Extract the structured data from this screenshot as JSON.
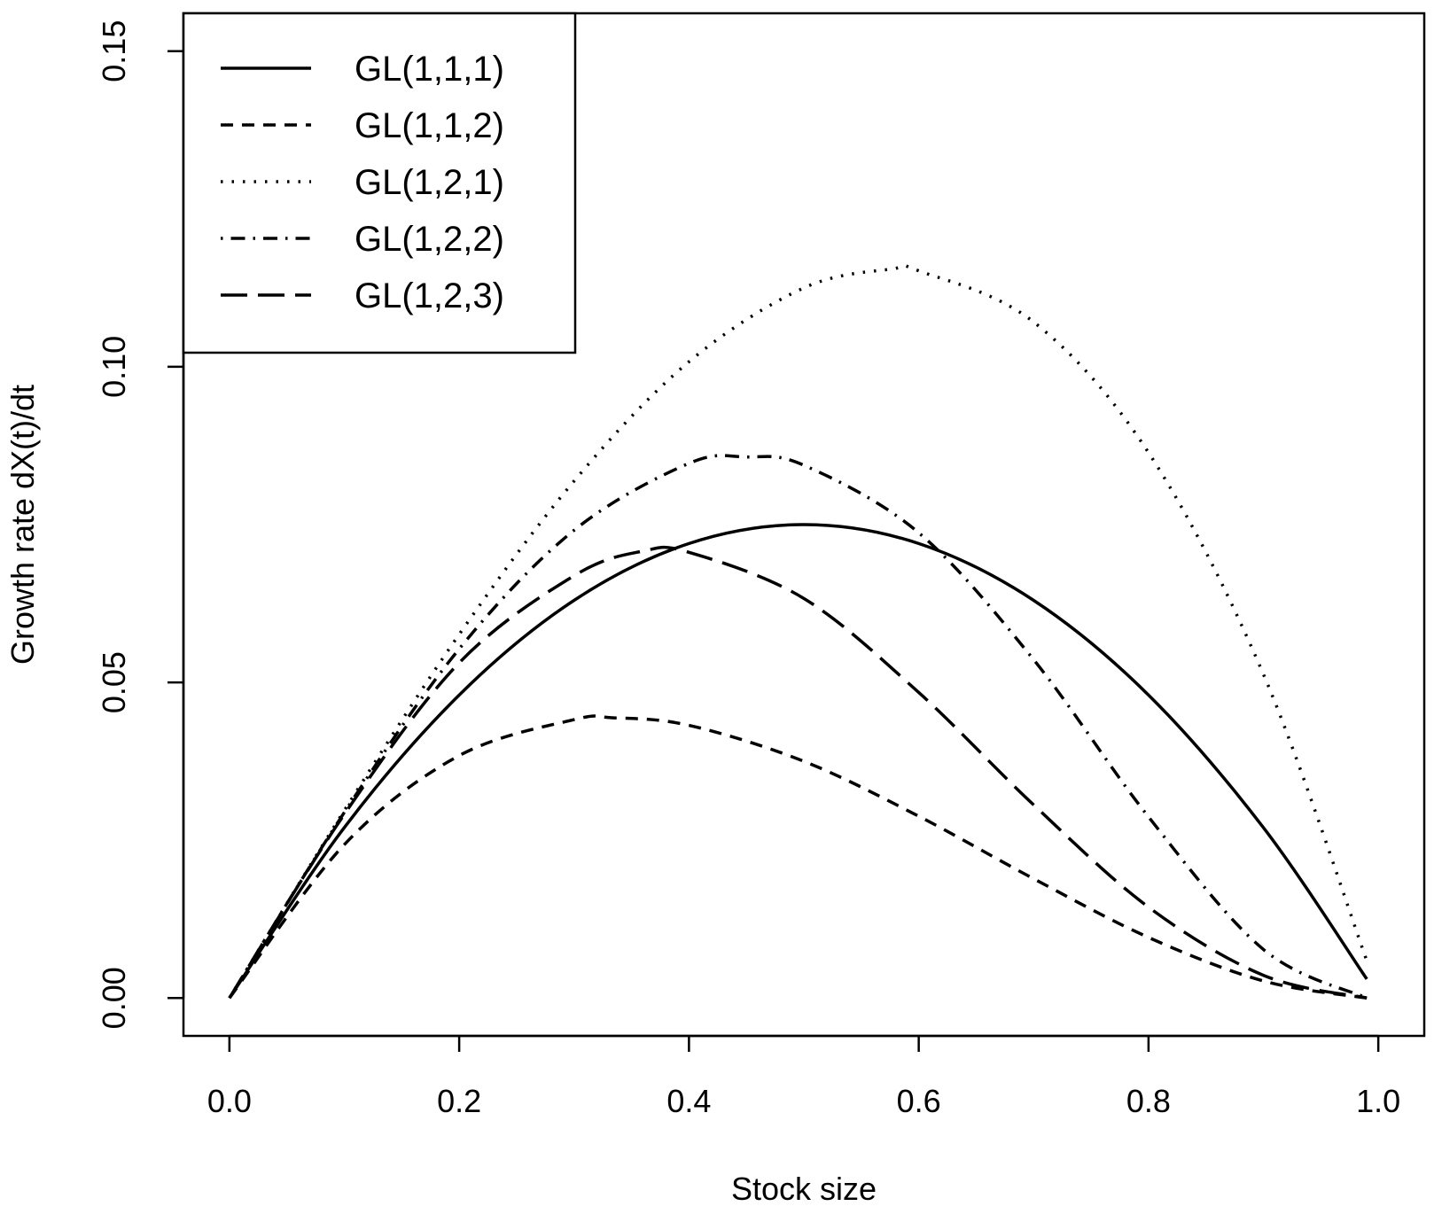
{
  "chart_data": {
    "type": "line",
    "title": "",
    "xlabel": "Stock size",
    "ylabel": "Growth rate dX(t)/dt",
    "xlim": [
      -0.04,
      1.04
    ],
    "ylim": [
      -0.006,
      0.156
    ],
    "xticks": [
      0.0,
      0.2,
      0.4,
      0.6,
      0.8,
      1.0
    ],
    "xtick_labels": [
      "0.0",
      "0.2",
      "0.4",
      "0.6",
      "0.8",
      "1.0"
    ],
    "yticks": [
      0.0,
      0.05,
      0.1,
      0.15
    ],
    "ytick_labels": [
      "0.00",
      "0.05",
      "0.10",
      "0.15"
    ],
    "grid": false,
    "legend_position": "top-left",
    "series": [
      {
        "name": "GL(1,1,1)",
        "style": "solid",
        "x": [
          0.0,
          0.1,
          0.2,
          0.3,
          0.4,
          0.5,
          0.6,
          0.7,
          0.8,
          0.9,
          0.99
        ],
        "y": [
          0.0,
          0.027,
          0.048,
          0.063,
          0.072,
          0.075,
          0.072,
          0.063,
          0.048,
          0.027,
          0.003
        ]
      },
      {
        "name": "GL(1,1,2)",
        "style": "dashed",
        "x": [
          0.0,
          0.1,
          0.2,
          0.3,
          0.333,
          0.4,
          0.5,
          0.6,
          0.7,
          0.8,
          0.9,
          0.99
        ],
        "y": [
          0.0,
          0.0243,
          0.0384,
          0.0441,
          0.0444,
          0.0432,
          0.0375,
          0.0288,
          0.0189,
          0.0096,
          0.0027,
          0.0
        ]
      },
      {
        "name": "GL(1,2,1)",
        "style": "dotted",
        "x": [
          0.0,
          0.1,
          0.2,
          0.3,
          0.4,
          0.5,
          0.577,
          0.6,
          0.7,
          0.8,
          0.9,
          0.99
        ],
        "y": [
          0.0,
          0.0297,
          0.0576,
          0.0819,
          0.1008,
          0.1125,
          0.1155,
          0.1152,
          0.1071,
          0.0864,
          0.0513,
          0.0059
        ]
      },
      {
        "name": "GL(1,2,2)",
        "style": "dotdash",
        "x": [
          0.0,
          0.1,
          0.2,
          0.3,
          0.4,
          0.45,
          0.5,
          0.6,
          0.7,
          0.8,
          0.9,
          0.99
        ],
        "y": [
          0.0,
          0.0294,
          0.0553,
          0.0741,
          0.0847,
          0.0857,
          0.0844,
          0.0737,
          0.0536,
          0.0287,
          0.0077,
          0.0
        ]
      },
      {
        "name": "GL(1,2,3)",
        "style": "longdash",
        "x": [
          0.0,
          0.1,
          0.2,
          0.3,
          0.36,
          0.4,
          0.5,
          0.6,
          0.7,
          0.8,
          0.9,
          0.99
        ],
        "y": [
          0.0,
          0.0291,
          0.0531,
          0.0669,
          0.0708,
          0.0706,
          0.0633,
          0.0484,
          0.0306,
          0.0144,
          0.0036,
          0.0
        ]
      }
    ]
  }
}
